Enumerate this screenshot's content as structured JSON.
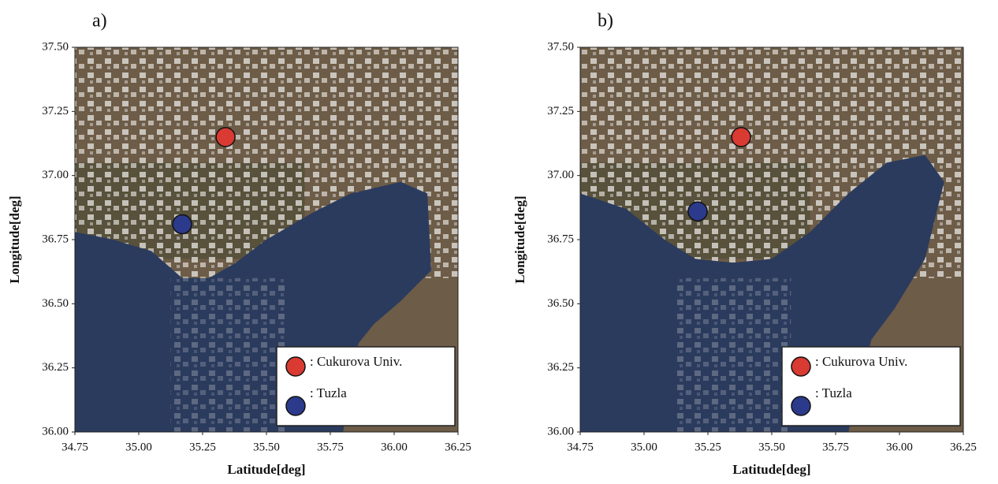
{
  "chart_data": [
    {
      "type": "scatter",
      "panel_label": "a)",
      "x_label": "Latitude[deg]",
      "y_label": "Longitude[deg]",
      "xlim": [
        34.75,
        36.25
      ],
      "ylim": [
        36.0,
        37.5
      ],
      "xticks": [
        {
          "value": 34.75,
          "label": "34.75"
        },
        {
          "value": 35,
          "label": "35.00"
        },
        {
          "value": 35.25,
          "label": "35.25"
        },
        {
          "value": 35.5,
          "label": "35.50"
        },
        {
          "value": 35.75,
          "label": "35.75"
        },
        {
          "value": 36,
          "label": "36.00"
        },
        {
          "value": 36.25,
          "label": "36.25"
        }
      ],
      "yticks": [
        {
          "value": 36,
          "label": "36.00"
        },
        {
          "value": 36.25,
          "label": "36.25"
        },
        {
          "value": 36.5,
          "label": "36.50"
        },
        {
          "value": 36.75,
          "label": "36.75"
        },
        {
          "value": 37,
          "label": "37.00"
        },
        {
          "value": 37.25,
          "label": "37.25"
        },
        {
          "value": 37.5,
          "label": "37.50"
        }
      ],
      "series": [
        {
          "name": ": Cukurova Univ.",
          "color": "#d93a32",
          "x": [
            35.34
          ],
          "values": [
            37.15
          ]
        },
        {
          "name": ": Tuzla",
          "color": "#2c3a8c",
          "x": [
            35.17
          ],
          "values": [
            36.81
          ]
        }
      ]
    },
    {
      "type": "scatter",
      "panel_label": "b)",
      "x_label": "Latitude[deg]",
      "y_label": "Longitude[deg]",
      "xlim": [
        34.75,
        36.25
      ],
      "ylim": [
        36.0,
        37.5
      ],
      "xticks": [
        {
          "value": 34.75,
          "label": "34.75"
        },
        {
          "value": 35,
          "label": "35.00"
        },
        {
          "value": 35.25,
          "label": "35.25"
        },
        {
          "value": 35.5,
          "label": "35.50"
        },
        {
          "value": 35.75,
          "label": "35.75"
        },
        {
          "value": 36,
          "label": "36.00"
        },
        {
          "value": 36.25,
          "label": "36.25"
        }
      ],
      "yticks": [
        {
          "value": 36,
          "label": "36.00"
        },
        {
          "value": 36.25,
          "label": "36.25"
        },
        {
          "value": 36.5,
          "label": "36.50"
        },
        {
          "value": 36.75,
          "label": "36.75"
        },
        {
          "value": 37,
          "label": "37.00"
        },
        {
          "value": 37.25,
          "label": "37.25"
        },
        {
          "value": 37.5,
          "label": "37.50"
        }
      ],
      "series": [
        {
          "name": ": Cukurova Univ.",
          "color": "#d93a32",
          "x": [
            35.38
          ],
          "values": [
            37.15
          ]
        },
        {
          "name": ": Tuzla",
          "color": "#2c3a8c",
          "x": [
            35.21
          ],
          "values": [
            36.86
          ]
        }
      ]
    }
  ]
}
